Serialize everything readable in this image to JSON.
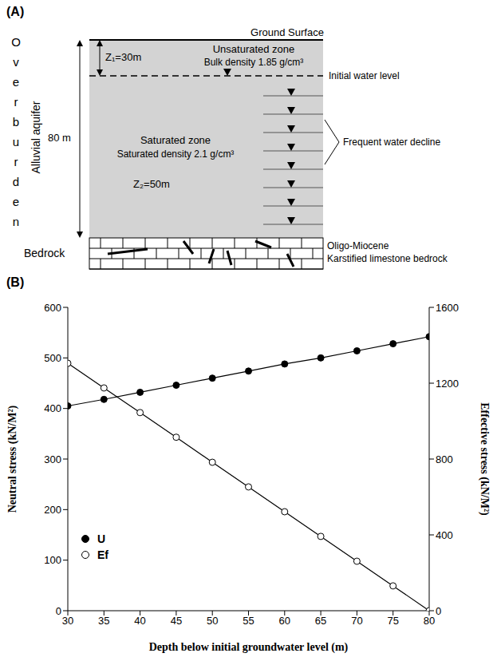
{
  "panel_a": {
    "label": "(A)",
    "side_label": "Overburden",
    "aquifer_label": "Alluvial aquifer",
    "total_thickness": "80 m",
    "ground_surface": "Ground Surface",
    "unsaturated_zone": {
      "title": "Unsaturated zone",
      "density": "Bulk density 1.85 g/cm³",
      "thickness": "Z₁=30m"
    },
    "initial_water_level": "Initial water level",
    "saturated_zone": {
      "title": "Saturated zone",
      "density": "Saturated density 2.1 g/cm³",
      "thickness": "Z₂=50m"
    },
    "water_decline": "Frequent water decline",
    "bedrock": {
      "label": "Bedrock",
      "lines": [
        "Oligo-Miocene",
        "Karstified limestone bedrock"
      ]
    }
  },
  "panel_b_label": "(B)",
  "chart_data": {
    "type": "line",
    "x_label": "Depth below initial groundwater level (m)",
    "y_label": "Neutral stress (kN/M²)",
    "y2_label": "Effective stress (kN/M²)",
    "x": [
      30,
      35,
      40,
      45,
      50,
      55,
      60,
      65,
      70,
      75,
      80
    ],
    "xlim": [
      30,
      80
    ],
    "xticks": [
      30,
      35,
      40,
      45,
      50,
      55,
      60,
      65,
      70,
      75,
      80
    ],
    "ylim": [
      0,
      600
    ],
    "yticks": [
      0,
      100,
      200,
      300,
      400,
      500,
      600
    ],
    "y2lim": [
      0,
      1600
    ],
    "y2ticks": [
      0,
      400,
      800,
      1200,
      1600
    ],
    "legend": "lower left",
    "series": [
      {
        "name": "U",
        "color": "#000000",
        "marker": "circle",
        "values": [
          405,
          418,
          432,
          446,
          460,
          474,
          488,
          500,
          514,
          528,
          542
        ]
      },
      {
        "name": "Ef",
        "color": "#000000",
        "marker": "hollow",
        "axis": "y2",
        "values": [
          1305,
          1175,
          1045,
          915,
          783,
          653,
          522,
          392,
          261,
          131,
          0
        ]
      }
    ]
  }
}
